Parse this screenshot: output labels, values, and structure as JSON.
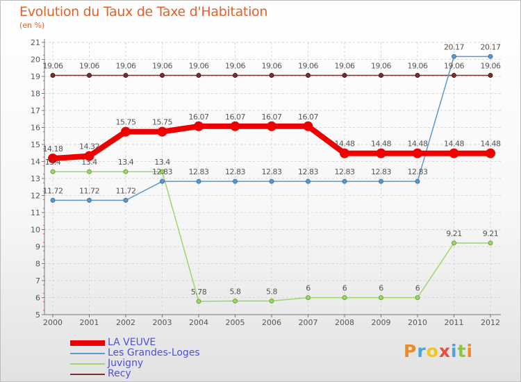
{
  "title": "Evolution du Taux de Taxe d'Habitation",
  "subtitle": "(en %)",
  "logo": {
    "letters": [
      "P",
      "r",
      "o",
      "x",
      "i",
      "t",
      "i"
    ],
    "colors": [
      "#f08a24",
      "#4aa3df",
      "#f5c518",
      "#e94e3c",
      "#4aa3df",
      "#8cc63f",
      "#f08a24"
    ]
  },
  "chart_data": {
    "type": "line",
    "x": [
      "2000",
      "2001",
      "2002",
      "2003",
      "2004",
      "2005",
      "2006",
      "2007",
      "2008",
      "2009",
      "2010",
      "2011",
      "2012"
    ],
    "ylim": [
      5,
      21
    ],
    "yticks": [
      "5",
      "6",
      "7",
      "8",
      "9",
      "10",
      "11",
      "12",
      "13",
      "14",
      "15",
      "16",
      "17",
      "18",
      "19",
      "20",
      "21"
    ],
    "grid": true,
    "series": [
      {
        "name": "LA VEUVE",
        "color": "#ee0000",
        "values": [
          14.18,
          14.32,
          15.75,
          15.75,
          16.07,
          16.07,
          16.07,
          16.07,
          14.48,
          14.48,
          14.48,
          14.48,
          14.48
        ],
        "labels": [
          "14.18",
          "14.32",
          "15.75",
          "15.75",
          "16.07",
          "16.07",
          "16.07",
          "16.07",
          "14.48",
          "14.48",
          "14.48",
          "14.48",
          "14.48"
        ]
      },
      {
        "name": "Les Grandes-Loges",
        "color": "#5f97c7",
        "values": [
          11.72,
          11.72,
          11.72,
          12.83,
          12.83,
          12.83,
          12.83,
          12.83,
          12.83,
          12.83,
          12.83,
          20.17,
          20.17
        ],
        "labels": [
          "11.72",
          "11.72",
          "11.72",
          "12.83",
          "12.83",
          "12.83",
          "12.83",
          "12.83",
          "12.83",
          "12.83",
          "12.83",
          "20.17",
          "20.17"
        ]
      },
      {
        "name": "Juvigny",
        "color": "#9ed56b",
        "values": [
          13.4,
          13.4,
          13.4,
          13.4,
          5.78,
          5.8,
          5.8,
          6,
          6,
          6,
          6,
          9.21,
          9.21
        ],
        "labels": [
          "13.4",
          "13.4",
          "13.4",
          "13.4",
          "5.78",
          "5.8",
          "5.8",
          "6",
          "6",
          "6",
          "6",
          "9.21",
          "9.21"
        ]
      },
      {
        "name": "Recy",
        "color": "#7a2e2e",
        "values": [
          19.06,
          19.06,
          19.06,
          19.06,
          19.06,
          19.06,
          19.06,
          19.06,
          19.06,
          19.06,
          19.06,
          19.06,
          19.06
        ],
        "labels": [
          "19.06",
          "19.06",
          "19.06",
          "19.06",
          "19.06",
          "19.06",
          "19.06",
          "19.06",
          "19.06",
          "19.06",
          "19.06",
          "19.06",
          "19.06"
        ]
      }
    ]
  }
}
